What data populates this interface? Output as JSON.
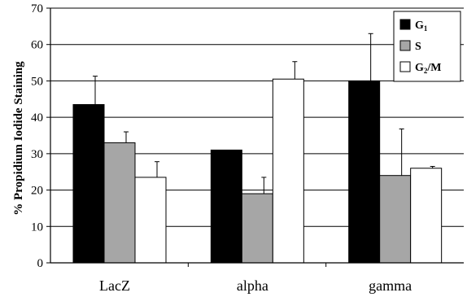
{
  "chart_data": {
    "type": "bar",
    "ylabel": "% Propidium Iodide Staining",
    "ylim": [
      0,
      70
    ],
    "yticks": [
      0,
      10,
      20,
      30,
      40,
      50,
      60,
      70
    ],
    "grid": true,
    "legend_position": "top-right",
    "categories": [
      "LacZ",
      "alpha",
      "gamma"
    ],
    "series": [
      {
        "name": "G1",
        "name_main": "G",
        "name_sub": "1",
        "color": "#000000",
        "values": [
          43.5,
          31,
          50
        ],
        "errors": [
          7.8,
          0,
          13
        ]
      },
      {
        "name": "S",
        "name_main": "S",
        "name_sub": "",
        "color": "#a6a6a6",
        "values": [
          33,
          19,
          24
        ],
        "errors": [
          3,
          4.5,
          12.8
        ]
      },
      {
        "name": "G2/M",
        "name_main": "G",
        "name_sub": "2",
        "name_rest": "/M",
        "color": "#ffffff",
        "values": [
          23.5,
          50.5,
          26
        ],
        "errors": [
          4.3,
          4.8,
          0.5
        ]
      }
    ]
  }
}
